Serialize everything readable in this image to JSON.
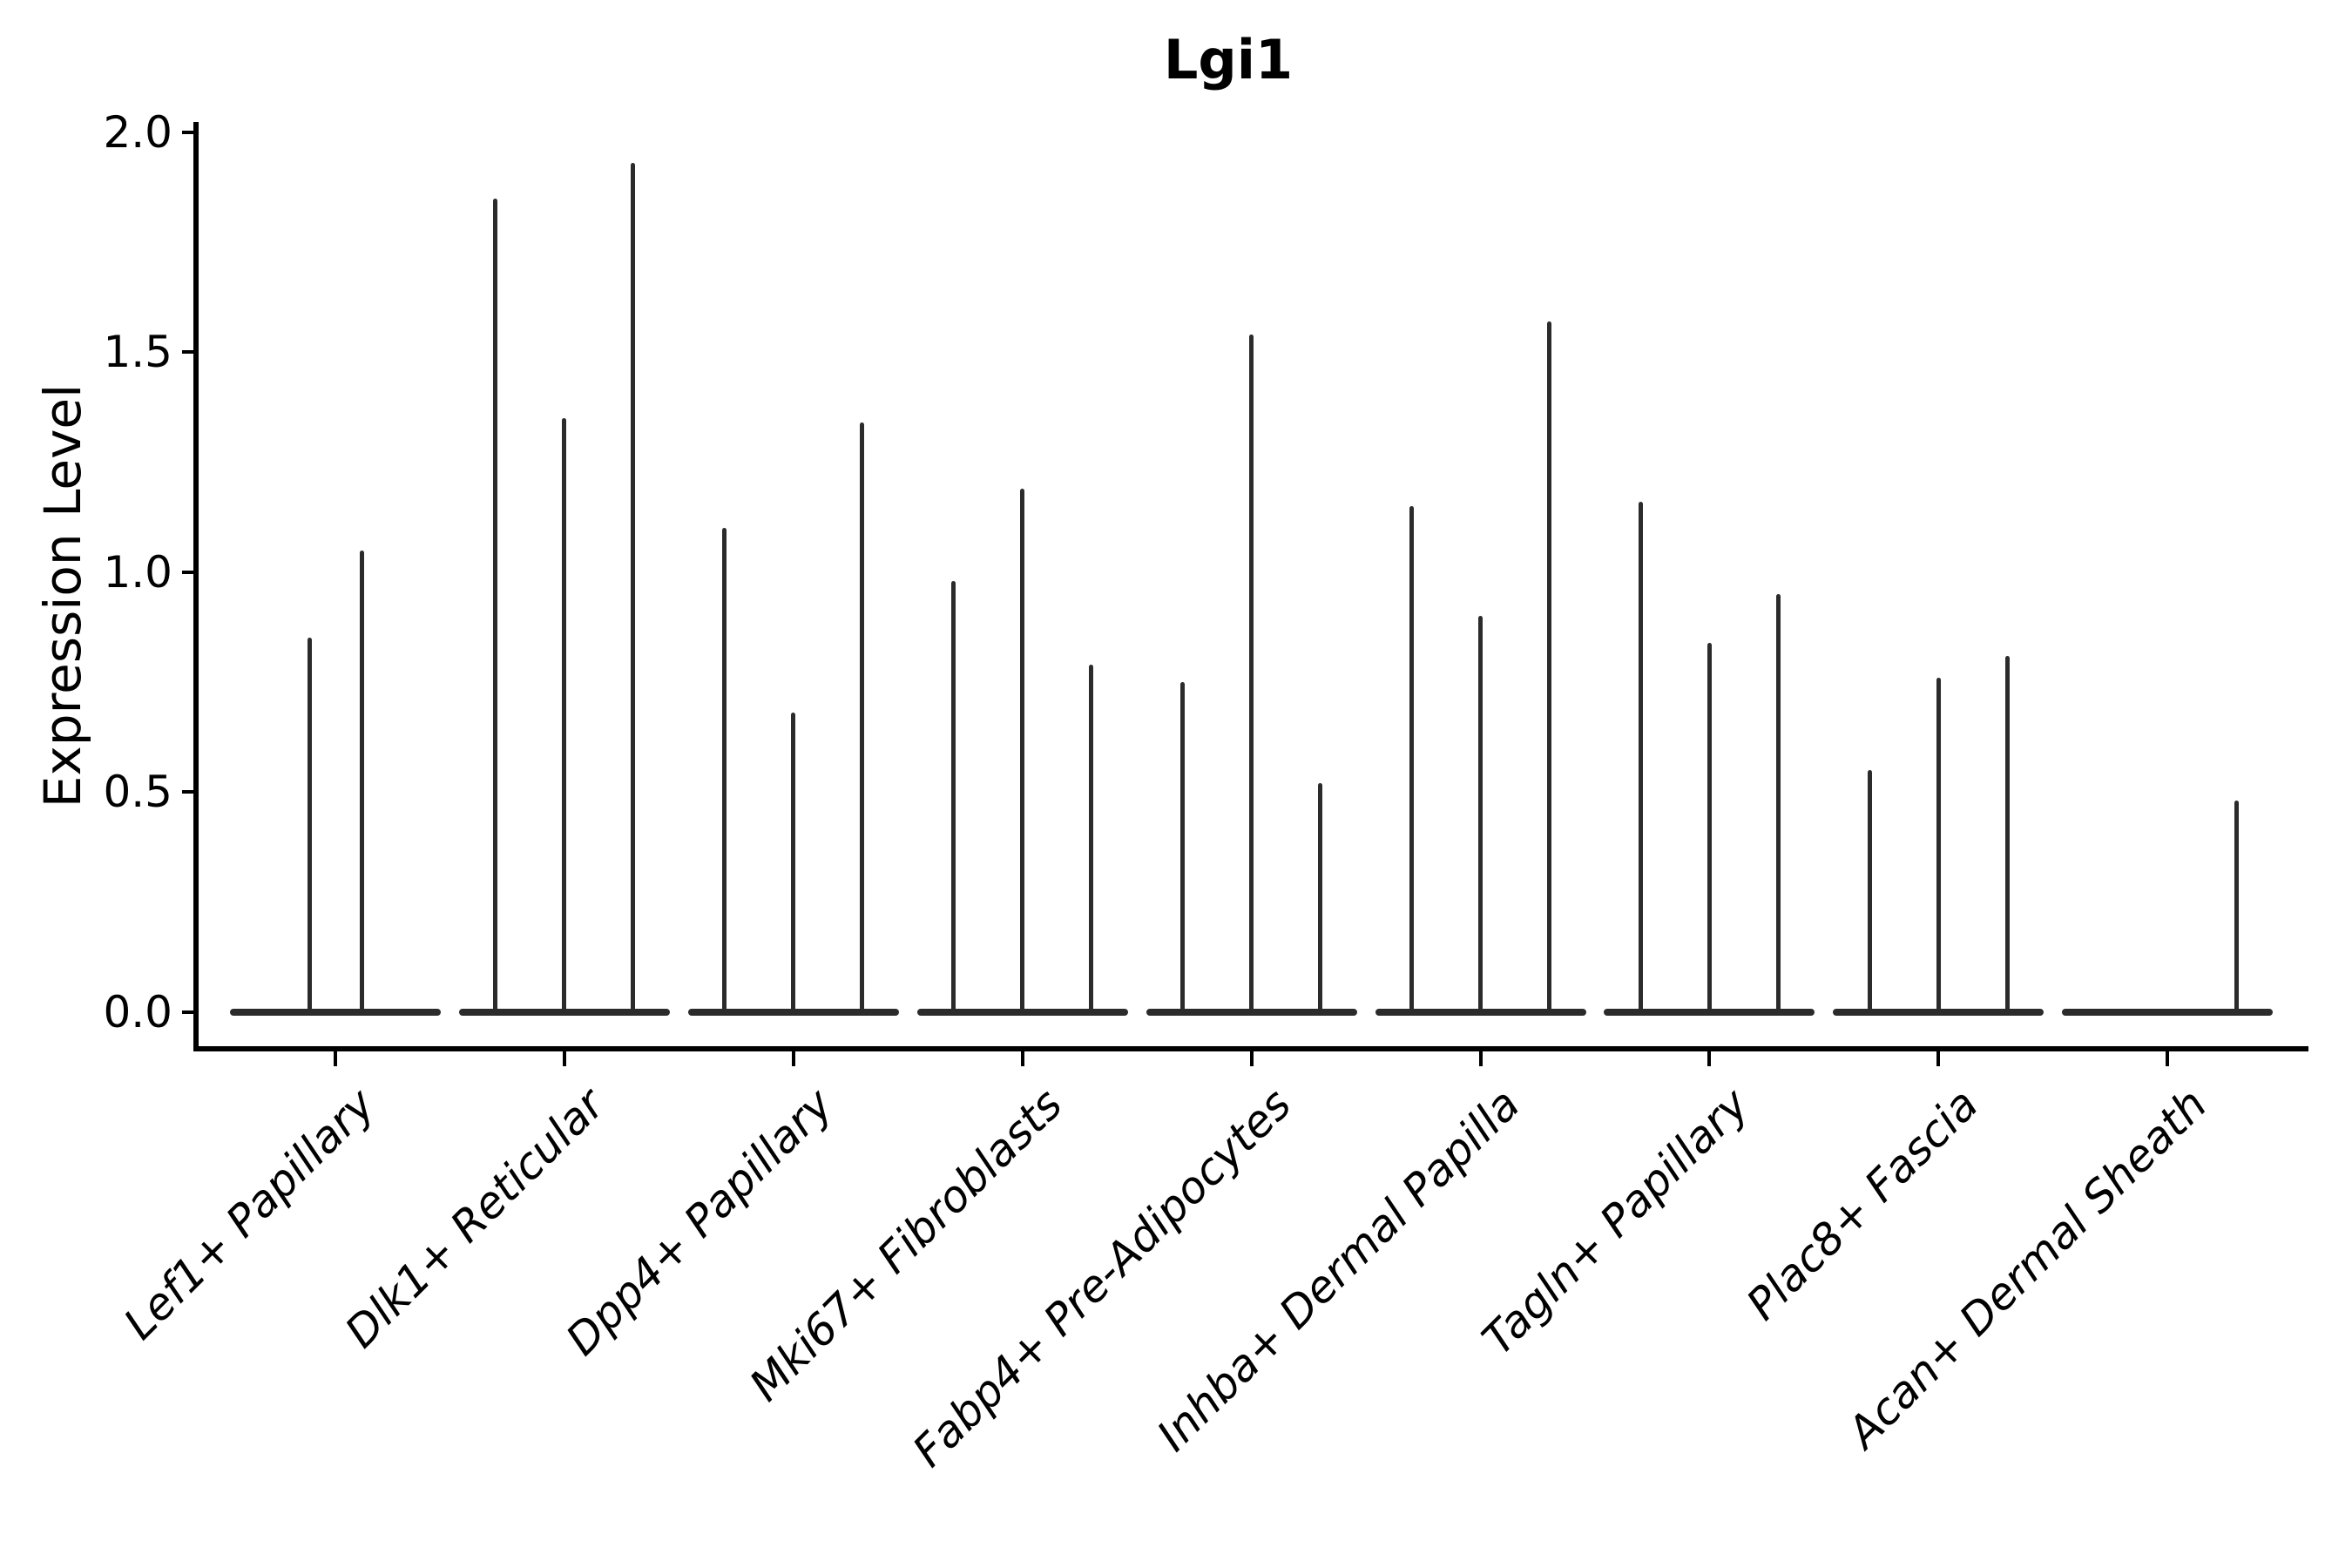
{
  "chart_data": {
    "type": "violin",
    "title": "Lgi1",
    "ylabel": "Expression Level",
    "xlabel": "",
    "ylim": [
      0.0,
      2.0
    ],
    "yticks": [
      0.0,
      0.5,
      1.0,
      1.5,
      2.0
    ],
    "ytick_labels": [
      "0.0",
      "0.5",
      "1.0",
      "1.5",
      "2.0"
    ],
    "grid": false,
    "legend_position": "none",
    "categories": [
      "Lef1+ Papillary",
      "Dlk1+ Reticular",
      "Dpp4+ Papillary",
      "Mki67+ Fibroblasts",
      "Fabp4+ Pre-Adipocytes",
      "Inhba+ Dermal Papilla",
      "Tagln+ Papillary",
      "Plac8+ Fascia",
      "Acan+ Dermal Sheath"
    ],
    "groups": [
      {
        "label": "Lef1+ Papillary",
        "violin_max_expression": [
          0.85,
          1.05
        ]
      },
      {
        "label": "Dlk1+ Reticular",
        "violin_max_expression": [
          1.85,
          1.35,
          1.93
        ]
      },
      {
        "label": "Dpp4+ Papillary",
        "violin_max_expression": [
          1.1,
          0.68,
          1.34
        ]
      },
      {
        "label": "Mki67+ Fibroblasts",
        "violin_max_expression": [
          0.98,
          1.19,
          0.79
        ]
      },
      {
        "label": "Fabp4+ Pre-Adipocytes",
        "violin_max_expression": [
          0.75,
          1.54,
          0.52
        ]
      },
      {
        "label": "Inhba+ Dermal Papilla",
        "violin_max_expression": [
          1.15,
          0.9,
          1.57
        ]
      },
      {
        "label": "Tagln+ Papillary",
        "violin_max_expression": [
          1.16,
          0.84,
          0.95
        ]
      },
      {
        "label": "Plac8+ Fascia",
        "violin_max_expression": [
          0.55,
          0.76,
          0.81
        ]
      },
      {
        "label": "Acan+ Dermal Sheath",
        "violin_max_expression": [
          0.0,
          0.0,
          0.48
        ]
      }
    ],
    "colors": {
      "violin": "#2b2b2b",
      "axis": "#000000",
      "text": "#000000",
      "background": "#ffffff"
    }
  }
}
